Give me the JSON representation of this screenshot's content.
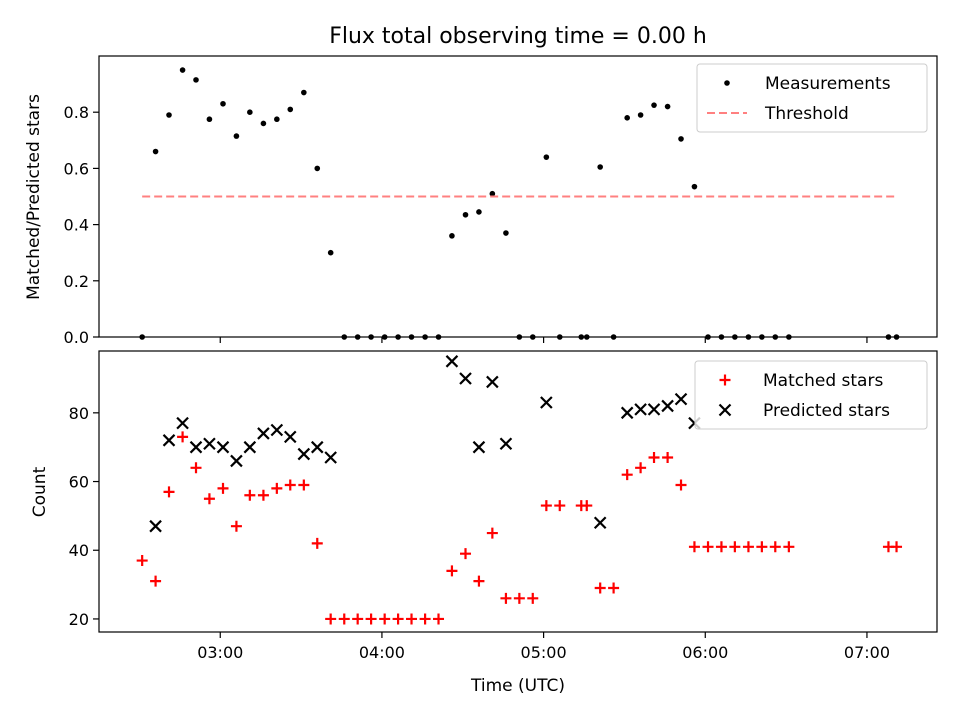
{
  "title": "Flux total observing time = 0.00 h",
  "chart_data": [
    {
      "type": "scatter",
      "ylabel": "Matched/Predicted stars",
      "xlim": [
        2.25,
        7.4333
      ],
      "ylim": [
        0,
        1.0
      ],
      "yticks": [
        0.0,
        0.2,
        0.4,
        0.6,
        0.8
      ],
      "ytick_labels": [
        "0.0",
        "0.2",
        "0.4",
        "0.6",
        "0.8"
      ],
      "show_xtick_labels": false,
      "legend": {
        "position": "top-right",
        "entries": [
          "Measurements",
          "Threshold"
        ]
      },
      "series": [
        {
          "name": "Measurements",
          "marker": "dot",
          "color": "#000000",
          "x": [
            2.517,
            2.6,
            2.683,
            2.767,
            2.85,
            2.933,
            3.017,
            3.1,
            3.183,
            3.267,
            3.35,
            3.433,
            3.517,
            3.6,
            3.683,
            3.767,
            3.85,
            3.933,
            4.017,
            4.1,
            4.183,
            4.267,
            4.35,
            4.433,
            4.517,
            4.6,
            4.683,
            4.767,
            4.85,
            4.933,
            5.017,
            5.1,
            5.233,
            5.267,
            5.35,
            5.433,
            5.517,
            5.6,
            5.683,
            5.767,
            5.85,
            5.933,
            6.017,
            6.1,
            6.183,
            6.267,
            6.35,
            6.433,
            6.517,
            7.133,
            7.183
          ],
          "y": [
            0.0,
            0.66,
            0.79,
            0.95,
            0.915,
            0.775,
            0.83,
            0.715,
            0.8,
            0.76,
            0.775,
            0.81,
            0.87,
            0.6,
            0.3,
            0.0,
            0.0,
            0.0,
            0.0,
            0.0,
            0.0,
            0.0,
            0.0,
            0.36,
            0.435,
            0.445,
            0.51,
            0.37,
            0.0,
            0.0,
            0.64,
            0.0,
            0.0,
            0.0,
            0.605,
            0.0,
            0.78,
            0.79,
            0.825,
            0.82,
            0.705,
            0.535,
            0.0,
            0.0,
            0.0,
            0.0,
            0.0,
            0.0,
            0.0,
            0.0,
            0.0
          ]
        },
        {
          "name": "Threshold",
          "kind": "dashed-line",
          "color": "#ff8080",
          "x": [
            2.517,
            7.183
          ],
          "y": [
            0.5,
            0.5
          ]
        }
      ]
    },
    {
      "type": "scatter",
      "xlabel": "Time (UTC)",
      "ylabel": "Count",
      "xlim": [
        2.25,
        7.4333
      ],
      "ylim": [
        16.2,
        98.0
      ],
      "yticks": [
        20,
        40,
        60,
        80
      ],
      "ytick_labels": [
        "20",
        "40",
        "60",
        "80"
      ],
      "xticks": [
        3,
        4,
        5,
        6,
        7
      ],
      "xtick_labels": [
        "03:00",
        "04:00",
        "05:00",
        "06:00",
        "07:00"
      ],
      "legend": {
        "position": "top-right",
        "entries": [
          "Matched stars",
          "Predicted stars"
        ]
      },
      "series": [
        {
          "name": "Matched stars",
          "marker": "plus",
          "color": "#ff0000",
          "x": [
            2.517,
            2.6,
            2.683,
            2.767,
            2.85,
            2.933,
            3.017,
            3.1,
            3.183,
            3.267,
            3.35,
            3.433,
            3.517,
            3.6,
            3.683,
            3.767,
            3.85,
            3.933,
            4.017,
            4.1,
            4.183,
            4.267,
            4.35,
            4.433,
            4.517,
            4.6,
            4.683,
            4.767,
            4.85,
            4.933,
            5.017,
            5.1,
            5.233,
            5.267,
            5.35,
            5.433,
            5.517,
            5.6,
            5.683,
            5.767,
            5.85,
            5.933,
            6.017,
            6.1,
            6.183,
            6.267,
            6.35,
            6.433,
            6.517,
            7.133,
            7.183
          ],
          "y": [
            37,
            31,
            57,
            73,
            64,
            55,
            58,
            47,
            56,
            56,
            58,
            59,
            59,
            42,
            20,
            20,
            20,
            20,
            20,
            20,
            20,
            20,
            20,
            34,
            39,
            31,
            45,
            26,
            26,
            26,
            53,
            53,
            53,
            53,
            29,
            29,
            62,
            64,
            67,
            67,
            59,
            41,
            41,
            41,
            41,
            41,
            41,
            41,
            41,
            41,
            41
          ]
        },
        {
          "name": "Predicted stars",
          "marker": "x",
          "color": "#000000",
          "x": [
            2.6,
            2.683,
            2.767,
            2.85,
            2.933,
            3.017,
            3.1,
            3.183,
            3.267,
            3.35,
            3.433,
            3.517,
            3.6,
            3.683,
            4.433,
            4.517,
            4.6,
            4.683,
            4.767,
            5.017,
            5.35,
            5.517,
            5.6,
            5.683,
            5.767,
            5.85,
            5.933
          ],
          "y": [
            47,
            72,
            77,
            70,
            71,
            70,
            66,
            70,
            74,
            75,
            73,
            68,
            70,
            67,
            95,
            90,
            70,
            89,
            71,
            83,
            48,
            80,
            81,
            81,
            82,
            84,
            77
          ]
        }
      ]
    }
  ]
}
